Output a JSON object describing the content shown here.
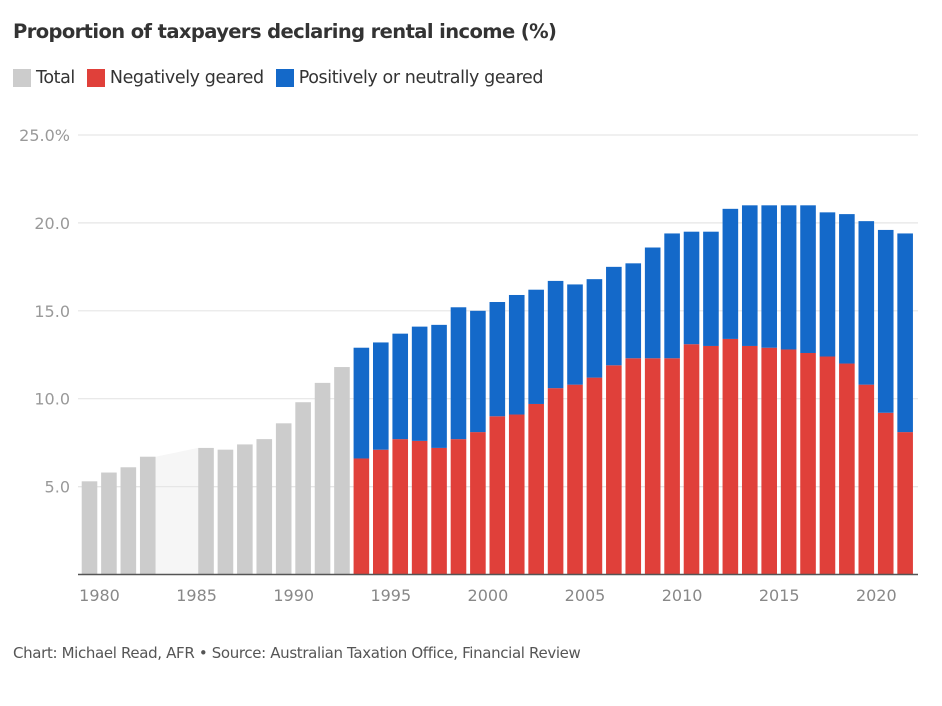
{
  "chart_data": {
    "type": "bar",
    "stacked": true,
    "title": "Proportion of taxpayers declaring rental income (%)",
    "xlabel": "",
    "ylabel": "",
    "ylim": [
      0,
      25
    ],
    "y_ticks": [
      {
        "value": 25,
        "label": "25.0%"
      },
      {
        "value": 20,
        "label": "20.0"
      },
      {
        "value": 15,
        "label": "15.0"
      },
      {
        "value": 10,
        "label": "10.0"
      },
      {
        "value": 5,
        "label": "5.0"
      }
    ],
    "x_ticks": [
      "1980",
      "1985",
      "1990",
      "1995",
      "2000",
      "2005",
      "2010",
      "2015",
      "2020"
    ],
    "grid": true,
    "legend_position": "top-left",
    "legend": [
      {
        "name": "Total",
        "color": "#cccccc"
      },
      {
        "name": "Negatively geared",
        "color": "#e0403a"
      },
      {
        "name": "Positively or neutrally geared",
        "color": "#1469c9"
      }
    ],
    "categories": [
      1980,
      1981,
      1982,
      1983,
      1984,
      1985,
      1986,
      1987,
      1988,
      1989,
      1990,
      1991,
      1992,
      1993,
      1994,
      1995,
      1996,
      1997,
      1998,
      1999,
      2000,
      2001,
      2002,
      2003,
      2004,
      2005,
      2006,
      2007,
      2008,
      2009,
      2010,
      2011,
      2012,
      2013,
      2014,
      2015,
      2016,
      2017,
      2018,
      2019,
      2020,
      2021,
      2022
    ],
    "series": [
      {
        "name": "Total",
        "values": [
          5.3,
          5.8,
          6.1,
          6.7,
          null,
          null,
          7.2,
          7.1,
          7.4,
          7.7,
          8.6,
          9.8,
          10.9,
          11.8,
          null,
          null,
          null,
          null,
          null,
          null,
          null,
          null,
          null,
          null,
          null,
          null,
          null,
          null,
          null,
          null,
          null,
          null,
          null,
          null,
          null,
          null,
          null,
          null,
          null,
          null,
          null,
          null,
          null
        ]
      },
      {
        "name": "Negatively geared",
        "values": [
          null,
          null,
          null,
          null,
          null,
          null,
          null,
          null,
          null,
          null,
          null,
          null,
          null,
          null,
          6.6,
          7.1,
          7.7,
          7.6,
          7.2,
          7.7,
          8.1,
          9.0,
          9.1,
          9.7,
          10.6,
          10.8,
          11.2,
          11.9,
          12.3,
          12.3,
          12.3,
          13.1,
          13.0,
          13.4,
          13.0,
          12.9,
          12.8,
          12.6,
          12.4,
          12.0,
          10.8,
          9.2,
          8.1
        ]
      },
      {
        "name": "Positively or neutrally geared",
        "values": [
          null,
          null,
          null,
          null,
          null,
          null,
          null,
          null,
          null,
          null,
          null,
          null,
          null,
          null,
          6.3,
          6.1,
          6.0,
          6.5,
          7.0,
          7.5,
          6.9,
          6.5,
          6.8,
          6.5,
          6.1,
          5.7,
          5.6,
          5.6,
          5.4,
          6.3,
          7.1,
          6.4,
          6.5,
          7.4,
          8.0,
          8.1,
          8.2,
          8.4,
          8.2,
          8.5,
          9.3,
          10.4,
          11.3
        ]
      }
    ],
    "totals": [
      5.3,
      5.8,
      6.1,
      6.7,
      null,
      null,
      7.2,
      7.1,
      7.4,
      7.7,
      8.6,
      9.8,
      10.9,
      11.8,
      12.9,
      13.2,
      13.7,
      14.1,
      14.2,
      15.2,
      15.0,
      15.5,
      15.9,
      16.2,
      16.7,
      16.5,
      16.8,
      17.5,
      17.7,
      18.6,
      19.4,
      19.5,
      19.5,
      20.8,
      21.0,
      21.0,
      21.0,
      21.0,
      20.6,
      20.5,
      20.1,
      19.6,
      19.4
    ],
    "annotations": [
      "Missing data 1984–1985 shown as light shaded gap"
    ]
  },
  "footer": {
    "credit": "Chart: Michael Read, AFR • Source: Australian Taxation Office, Financial Review"
  }
}
